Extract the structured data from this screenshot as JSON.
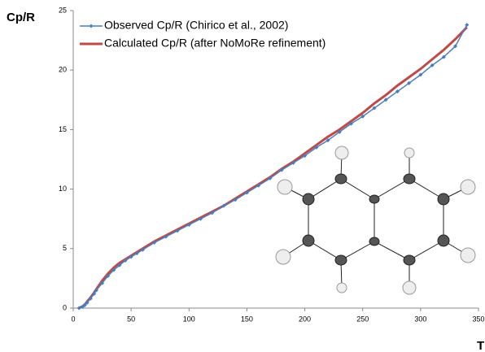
{
  "chart_data": {
    "type": "line",
    "y_label": "Cp/R",
    "x_label": "T",
    "x": [
      5,
      8,
      10,
      12,
      15,
      18,
      20,
      25,
      30,
      35,
      40,
      45,
      50,
      55,
      60,
      70,
      80,
      90,
      100,
      110,
      120,
      130,
      140,
      150,
      160,
      170,
      180,
      190,
      200,
      210,
      220,
      230,
      240,
      250,
      260,
      270,
      280,
      290,
      300,
      310,
      320,
      330,
      340
    ],
    "series": [
      {
        "name": "Observed Cp/R (Chirico et al., 2002)",
        "color": "#4a7ebb",
        "marker": true,
        "values": [
          0,
          0.1,
          0.25,
          0.45,
          0.8,
          1.2,
          1.5,
          2.1,
          2.7,
          3.2,
          3.6,
          4.0,
          4.3,
          4.6,
          4.9,
          5.5,
          6.0,
          6.5,
          7.0,
          7.5,
          8.0,
          8.6,
          9.1,
          9.7,
          10.3,
          10.9,
          11.6,
          12.2,
          12.8,
          13.5,
          14.1,
          14.8,
          15.5,
          16.1,
          16.8,
          17.5,
          18.2,
          18.9,
          19.6,
          20.4,
          21.1,
          22.0,
          23.8
        ]
      },
      {
        "name": "Calculated Cp/R (after NoMoRe refinement)",
        "color": "#be4b48",
        "marker": false,
        "values": [
          0,
          0.15,
          0.3,
          0.55,
          0.9,
          1.3,
          1.6,
          2.3,
          2.9,
          3.4,
          3.8,
          4.1,
          4.4,
          4.7,
          5.0,
          5.6,
          6.1,
          6.6,
          7.1,
          7.6,
          8.1,
          8.6,
          9.2,
          9.8,
          10.4,
          11.0,
          11.7,
          12.3,
          13.0,
          13.7,
          14.4,
          15.0,
          15.7,
          16.4,
          17.2,
          17.9,
          18.7,
          19.4,
          20.1,
          20.9,
          21.7,
          22.6,
          23.6
        ]
      }
    ],
    "xlim": [
      0,
      350
    ],
    "xticks": [
      0,
      50,
      100,
      150,
      200,
      250,
      300,
      350
    ],
    "ylim": [
      0,
      25
    ],
    "yticks": [
      0,
      5,
      10,
      15,
      20,
      25
    ],
    "legend": "upper-left"
  }
}
